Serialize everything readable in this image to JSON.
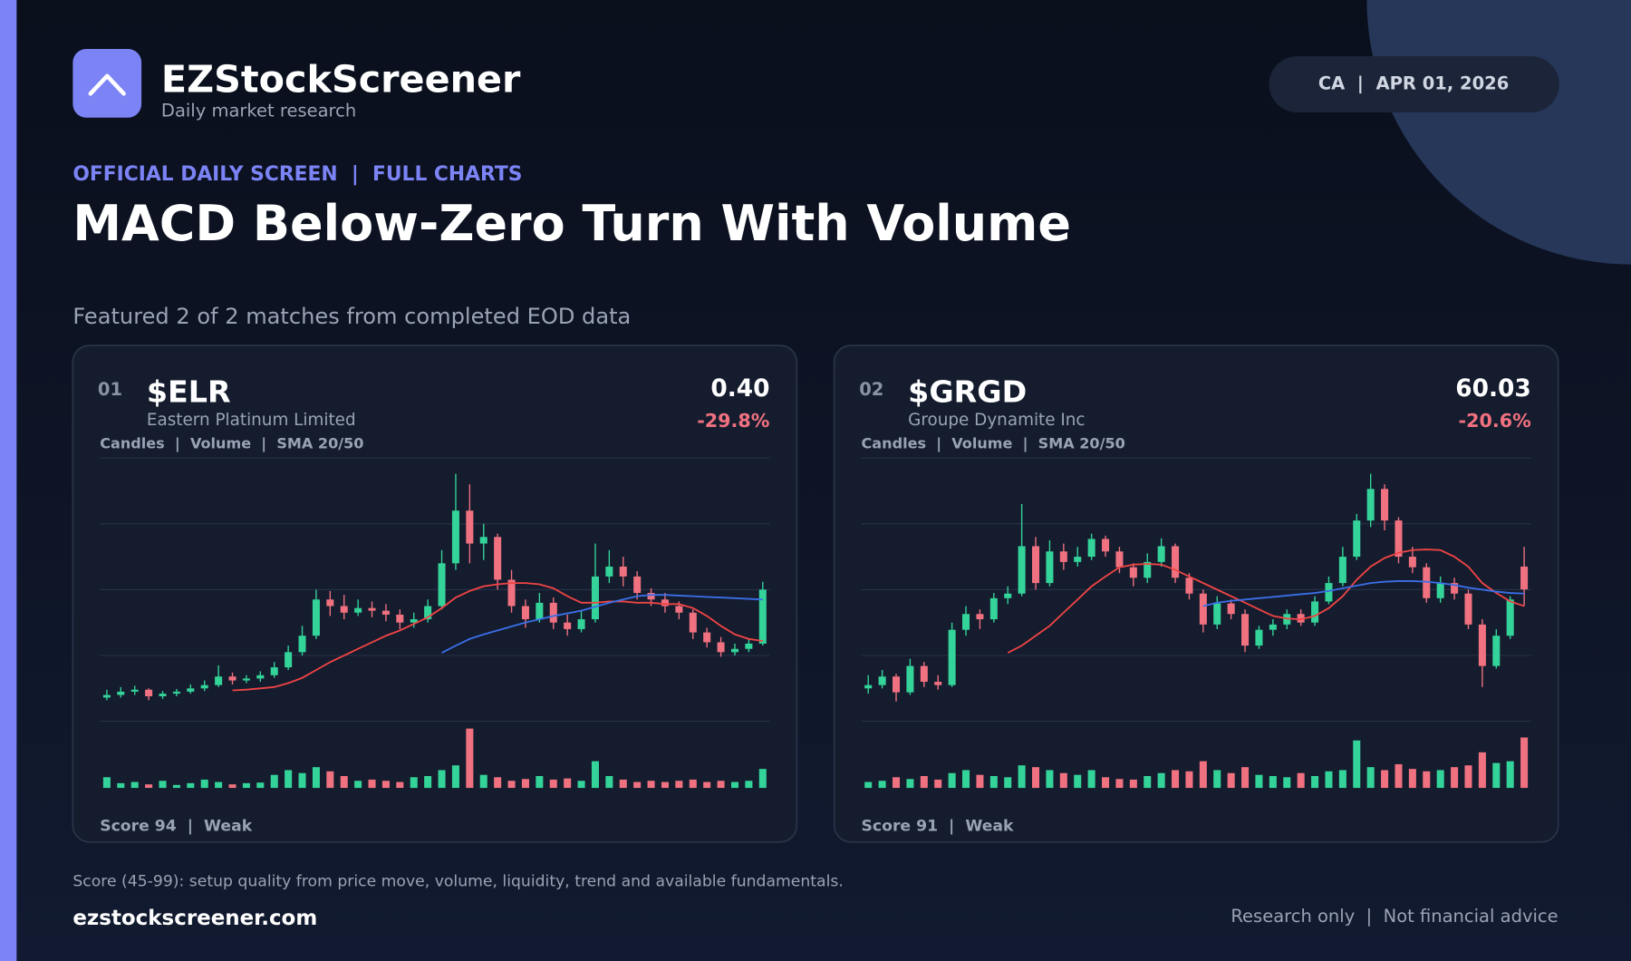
{
  "header": {
    "brand": "EZStockScreener",
    "tagline": "Daily market research",
    "badge": "CA  |  APR 01, 2026"
  },
  "kicker": "OFFICIAL DAILY SCREEN  |  FULL CHARTS",
  "title": "MACD Below-Zero Turn With Volume",
  "subtitle": "Featured 2 of 2 matches from completed EOD data",
  "cards": [
    {
      "index": "01",
      "ticker": "$ELR",
      "name": "Eastern Platinum Limited",
      "price": "0.40",
      "change": "-29.8%",
      "legend": "Candles  |  Volume  |  SMA 20/50",
      "score": "Score 94  |  Weak"
    },
    {
      "index": "02",
      "ticker": "$GRGD",
      "name": "Groupe Dynamite Inc",
      "price": "60.03",
      "change": "-20.6%",
      "legend": "Candles  |  Volume  |  SMA 20/50",
      "score": "Score 91  |  Weak"
    }
  ],
  "footnote": "Score (45-99): setup quality from price move, volume, liquidity, trend and available fundamentals.",
  "site": "ezstockscreener.com",
  "disclaimer": "Research only  |  Not financial advice",
  "chart_data": [
    {
      "type": "candlestick",
      "up_color": "#34d399",
      "down_color": "#f0717f",
      "grid": true,
      "ylim": [
        0.2,
        0.6
      ],
      "yticks": [
        0.2,
        0.3,
        0.4,
        0.5,
        0.6
      ],
      "vlim": [
        0,
        100
      ],
      "ohlc": [
        [
          0.236,
          0.248,
          0.232,
          0.24
        ],
        [
          0.24,
          0.252,
          0.236,
          0.245
        ],
        [
          0.245,
          0.254,
          0.24,
          0.248
        ],
        [
          0.248,
          0.25,
          0.232,
          0.238
        ],
        [
          0.238,
          0.246,
          0.234,
          0.242
        ],
        [
          0.242,
          0.249,
          0.238,
          0.245
        ],
        [
          0.245,
          0.256,
          0.242,
          0.25
        ],
        [
          0.25,
          0.262,
          0.246,
          0.255
        ],
        [
          0.255,
          0.285,
          0.252,
          0.268
        ],
        [
          0.268,
          0.274,
          0.256,
          0.262
        ],
        [
          0.262,
          0.27,
          0.258,
          0.265
        ],
        [
          0.265,
          0.276,
          0.26,
          0.27
        ],
        [
          0.27,
          0.29,
          0.266,
          0.282
        ],
        [
          0.282,
          0.315,
          0.278,
          0.305
        ],
        [
          0.305,
          0.345,
          0.3,
          0.33
        ],
        [
          0.33,
          0.4,
          0.325,
          0.385
        ],
        [
          0.385,
          0.398,
          0.36,
          0.375
        ],
        [
          0.375,
          0.392,
          0.355,
          0.365
        ],
        [
          0.365,
          0.385,
          0.36,
          0.372
        ],
        [
          0.372,
          0.382,
          0.358,
          0.368
        ],
        [
          0.368,
          0.378,
          0.352,
          0.362
        ],
        [
          0.362,
          0.37,
          0.34,
          0.35
        ],
        [
          0.35,
          0.365,
          0.342,
          0.355
        ],
        [
          0.355,
          0.385,
          0.35,
          0.375
        ],
        [
          0.375,
          0.46,
          0.37,
          0.44
        ],
        [
          0.44,
          0.576,
          0.43,
          0.52
        ],
        [
          0.52,
          0.56,
          0.44,
          0.47
        ],
        [
          0.47,
          0.5,
          0.445,
          0.48
        ],
        [
          0.48,
          0.485,
          0.4,
          0.415
        ],
        [
          0.415,
          0.43,
          0.365,
          0.375
        ],
        [
          0.375,
          0.385,
          0.342,
          0.355
        ],
        [
          0.355,
          0.395,
          0.35,
          0.38
        ],
        [
          0.38,
          0.388,
          0.34,
          0.35
        ],
        [
          0.35,
          0.362,
          0.33,
          0.34
        ],
        [
          0.34,
          0.368,
          0.335,
          0.355
        ],
        [
          0.355,
          0.47,
          0.35,
          0.42
        ],
        [
          0.42,
          0.46,
          0.41,
          0.435
        ],
        [
          0.435,
          0.45,
          0.405,
          0.42
        ],
        [
          0.42,
          0.428,
          0.385,
          0.395
        ],
        [
          0.395,
          0.402,
          0.375,
          0.385
        ],
        [
          0.385,
          0.395,
          0.365,
          0.375
        ],
        [
          0.375,
          0.382,
          0.355,
          0.365
        ],
        [
          0.365,
          0.37,
          0.325,
          0.335
        ],
        [
          0.335,
          0.342,
          0.312,
          0.32
        ],
        [
          0.32,
          0.328,
          0.298,
          0.305
        ],
        [
          0.305,
          0.318,
          0.3,
          0.31
        ],
        [
          0.31,
          0.325,
          0.305,
          0.318
        ],
        [
          0.318,
          0.412,
          0.315,
          0.4
        ]
      ],
      "volume": [
        18,
        8,
        10,
        6,
        12,
        5,
        8,
        14,
        10,
        6,
        8,
        9,
        22,
        30,
        25,
        35,
        28,
        20,
        12,
        14,
        12,
        10,
        18,
        20,
        30,
        38,
        100,
        22,
        18,
        12,
        15,
        20,
        14,
        16,
        12,
        45,
        20,
        14,
        10,
        12,
        10,
        12,
        14,
        10,
        12,
        10,
        12,
        32
      ],
      "lines": [
        {
          "color": "#ef4444",
          "values": [
            null,
            null,
            null,
            null,
            null,
            null,
            null,
            null,
            null,
            0.247,
            0.248,
            0.25,
            0.252,
            0.258,
            0.266,
            0.278,
            0.29,
            0.3,
            0.31,
            0.32,
            0.33,
            0.338,
            0.348,
            0.358,
            0.372,
            0.388,
            0.398,
            0.405,
            0.408,
            0.41,
            0.41,
            0.408,
            0.402,
            0.39,
            0.38,
            0.38,
            0.382,
            0.382,
            0.38,
            0.38,
            0.378,
            0.378,
            0.372,
            0.36,
            0.345,
            0.332,
            0.325,
            0.322
          ]
        },
        {
          "color": "#3b6fe8",
          "values": [
            null,
            null,
            null,
            null,
            null,
            null,
            null,
            null,
            null,
            null,
            null,
            null,
            null,
            null,
            null,
            null,
            null,
            null,
            null,
            null,
            null,
            null,
            null,
            null,
            0.304,
            0.315,
            0.325,
            0.332,
            0.338,
            0.344,
            0.35,
            0.355,
            0.36,
            0.364,
            0.368,
            0.374,
            0.38,
            0.385,
            0.39,
            0.392,
            0.392,
            0.391,
            0.39,
            0.389,
            0.388,
            0.387,
            0.386,
            0.385
          ]
        }
      ]
    },
    {
      "type": "candlestick",
      "up_color": "#34d399",
      "down_color": "#f0717f",
      "grid": true,
      "ylim": [
        40,
        80
      ],
      "yticks": [
        40,
        50,
        60,
        70,
        80
      ],
      "vlim": [
        0,
        100
      ],
      "ohlc": [
        [
          45.0,
          47.0,
          44.2,
          45.5
        ],
        [
          45.5,
          47.8,
          45.0,
          46.8
        ],
        [
          46.8,
          47.2,
          43.0,
          44.4
        ],
        [
          44.4,
          49.5,
          44.0,
          48.4
        ],
        [
          48.4,
          49.0,
          45.2,
          46.0
        ],
        [
          46.0,
          47.0,
          44.8,
          45.5
        ],
        [
          45.5,
          55.0,
          45.2,
          53.9
        ],
        [
          53.9,
          57.5,
          53.0,
          56.3
        ],
        [
          56.3,
          57.0,
          54.0,
          55.5
        ],
        [
          55.5,
          59.5,
          55.0,
          58.7
        ],
        [
          58.7,
          60.5,
          57.8,
          59.4
        ],
        [
          59.4,
          73.0,
          59.0,
          66.6
        ],
        [
          66.6,
          68.0,
          60.0,
          61.0
        ],
        [
          61.0,
          67.5,
          60.5,
          65.8
        ],
        [
          65.8,
          67.0,
          63.0,
          64.2
        ],
        [
          64.2,
          66.5,
          63.5,
          65.0
        ],
        [
          65.0,
          68.5,
          64.5,
          67.7
        ],
        [
          67.7,
          68.2,
          65.0,
          65.8
        ],
        [
          65.8,
          66.5,
          62.5,
          63.4
        ],
        [
          63.4,
          64.0,
          60.5,
          61.8
        ],
        [
          61.8,
          65.5,
          61.0,
          64.2
        ],
        [
          64.2,
          67.8,
          63.5,
          66.6
        ],
        [
          66.6,
          67.0,
          61.0,
          61.8
        ],
        [
          61.8,
          62.5,
          58.5,
          59.4
        ],
        [
          59.4,
          60.0,
          53.5,
          54.7
        ],
        [
          54.7,
          59.0,
          54.0,
          57.9
        ],
        [
          57.9,
          58.5,
          55.5,
          56.3
        ],
        [
          56.3,
          57.0,
          50.5,
          51.5
        ],
        [
          51.5,
          54.5,
          51.0,
          53.9
        ],
        [
          53.9,
          55.5,
          53.0,
          54.7
        ],
        [
          54.7,
          57.0,
          54.0,
          56.3
        ],
        [
          56.3,
          57.0,
          54.5,
          55.0
        ],
        [
          55.0,
          59.0,
          54.5,
          58.2
        ],
        [
          58.2,
          62.0,
          57.8,
          61.0
        ],
        [
          61.0,
          66.5,
          60.5,
          65.0
        ],
        [
          65.0,
          71.5,
          64.5,
          70.5
        ],
        [
          70.5,
          77.6,
          69.5,
          75.3
        ],
        [
          75.3,
          76.0,
          69.0,
          70.5
        ],
        [
          70.5,
          71.0,
          64.0,
          65.0
        ],
        [
          65.0,
          66.5,
          62.5,
          63.4
        ],
        [
          63.4,
          64.0,
          58.0,
          58.7
        ],
        [
          58.7,
          62.0,
          58.0,
          61.0
        ],
        [
          61.0,
          61.8,
          58.5,
          59.4
        ],
        [
          59.4,
          60.0,
          54.0,
          54.7
        ],
        [
          54.7,
          55.5,
          45.2,
          48.4
        ],
        [
          48.4,
          54.0,
          48.0,
          53.0
        ],
        [
          53.0,
          59.0,
          52.5,
          58.5
        ],
        [
          63.5,
          66.5,
          57.5,
          60.03
        ]
      ],
      "volume": [
        10,
        12,
        18,
        15,
        20,
        14,
        25,
        30,
        22,
        20,
        18,
        38,
        35,
        30,
        25,
        22,
        30,
        18,
        15,
        14,
        20,
        25,
        30,
        28,
        45,
        30,
        25,
        35,
        22,
        20,
        18,
        25,
        20,
        28,
        30,
        80,
        35,
        30,
        40,
        32,
        28,
        30,
        35,
        38,
        60,
        42,
        45,
        85
      ],
      "lines": [
        {
          "color": "#ef4444",
          "values": [
            null,
            null,
            null,
            null,
            null,
            null,
            null,
            null,
            null,
            null,
            50.4,
            51.5,
            53.0,
            54.5,
            56.5,
            58.5,
            60.5,
            62.0,
            63.4,
            63.8,
            63.9,
            63.8,
            63.0,
            62.0,
            61.0,
            60.0,
            59.0,
            58.0,
            57.0,
            56.0,
            55.6,
            55.5,
            56.0,
            57.2,
            59.0,
            61.5,
            63.5,
            64.8,
            65.6,
            66.0,
            66.1,
            66.0,
            65.0,
            63.5,
            61.0,
            59.5,
            58.2,
            57.5
          ]
        },
        {
          "color": "#3b6fe8",
          "values": [
            null,
            null,
            null,
            null,
            null,
            null,
            null,
            null,
            null,
            null,
            null,
            null,
            null,
            null,
            null,
            null,
            null,
            null,
            null,
            null,
            null,
            null,
            null,
            null,
            57.5,
            58.0,
            58.3,
            58.5,
            58.7,
            58.9,
            59.1,
            59.3,
            59.5,
            59.8,
            60.2,
            60.6,
            61.0,
            61.2,
            61.3,
            61.3,
            61.2,
            61.0,
            60.7,
            60.3,
            60.0,
            59.7,
            59.5,
            59.4
          ]
        }
      ]
    }
  ]
}
